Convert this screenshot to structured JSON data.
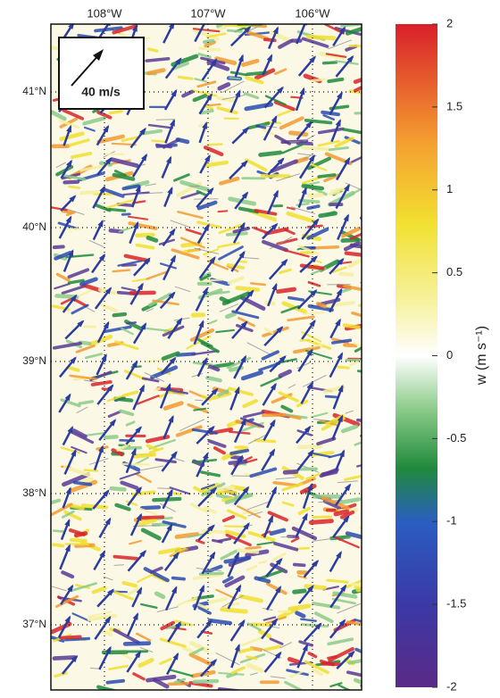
{
  "map": {
    "lon_labels": [
      "108°W",
      "107°W",
      "106°W"
    ],
    "lat_labels": [
      "41°N",
      "40°N",
      "39°N",
      "38°N",
      "37°N"
    ],
    "scale_label": "40 m/s",
    "colorbar": {
      "label": "w (m s⁻¹)",
      "clim": [
        -2,
        2
      ],
      "ticks": [
        2,
        1.5,
        1,
        0.5,
        0,
        -0.5,
        -1,
        -1.5,
        -2
      ]
    }
  }
}
